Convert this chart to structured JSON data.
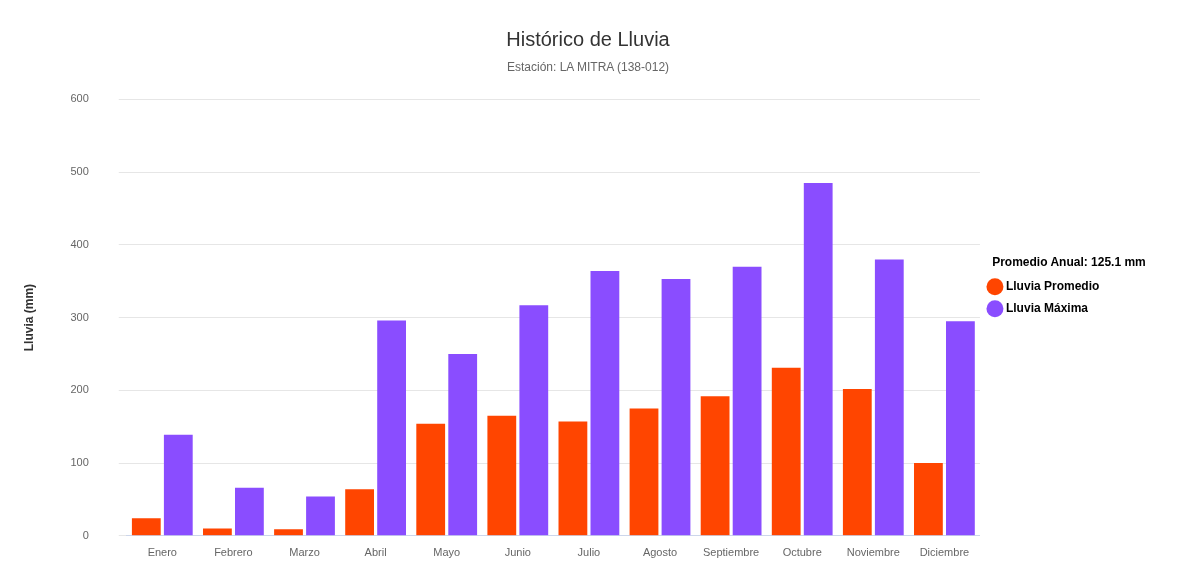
{
  "chart_data": {
    "type": "bar",
    "title": "Histórico de Lluvia",
    "subtitle": "Estación: LA MITRA (138-012)",
    "ylabel": "Lluvia (mm)",
    "legend_title": "Promedio Anual: 125.1 mm",
    "categories": [
      "Enero",
      "Febrero",
      "Marzo",
      "Abril",
      "Mayo",
      "Junio",
      "Julio",
      "Agosto",
      "Septiembre",
      "Octubre",
      "Noviembre",
      "Diciembre"
    ],
    "series": [
      {
        "name": "Lluvia Promedio",
        "color": "#ff4500",
        "values": [
          24,
          10,
          9,
          64,
          154,
          165,
          157,
          175,
          192,
          231,
          202,
          100
        ]
      },
      {
        "name": "Lluvia Máxima",
        "color": "#8a4dff",
        "values": [
          139,
          66,
          54,
          296,
          250,
          317,
          364,
          353,
          370,
          485,
          380,
          295
        ]
      }
    ],
    "ylim": [
      0,
      600
    ],
    "yticks": [
      0,
      100,
      200,
      300,
      400,
      500,
      600
    ],
    "grid": "y",
    "legend": "right"
  }
}
